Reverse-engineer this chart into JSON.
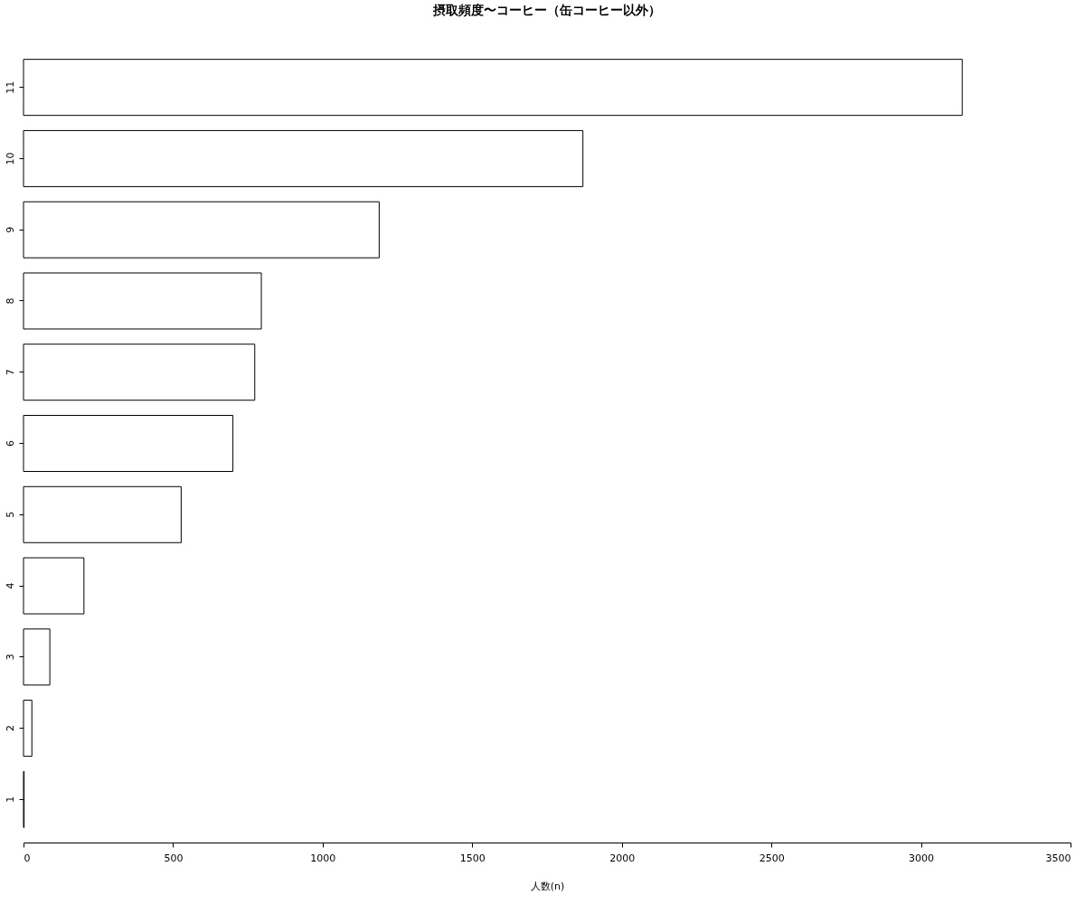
{
  "chart_data": {
    "type": "bar",
    "orientation": "horizontal",
    "title": "摂取頻度〜コーヒー（缶コーヒー以外）",
    "xlabel": "人数(n)",
    "categories": [
      "11",
      "10",
      "9",
      "8",
      "7",
      "6",
      "5",
      "4",
      "3",
      "2",
      "1"
    ],
    "values": [
      3138,
      1870,
      1189,
      795,
      773,
      700,
      527,
      202,
      88,
      28,
      2
    ],
    "color": "#ffffff",
    "xlim": [
      0,
      3500
    ],
    "xticks": [
      0,
      500,
      1000,
      1500,
      2000,
      2500,
      3000,
      3500
    ],
    "grid": false
  }
}
